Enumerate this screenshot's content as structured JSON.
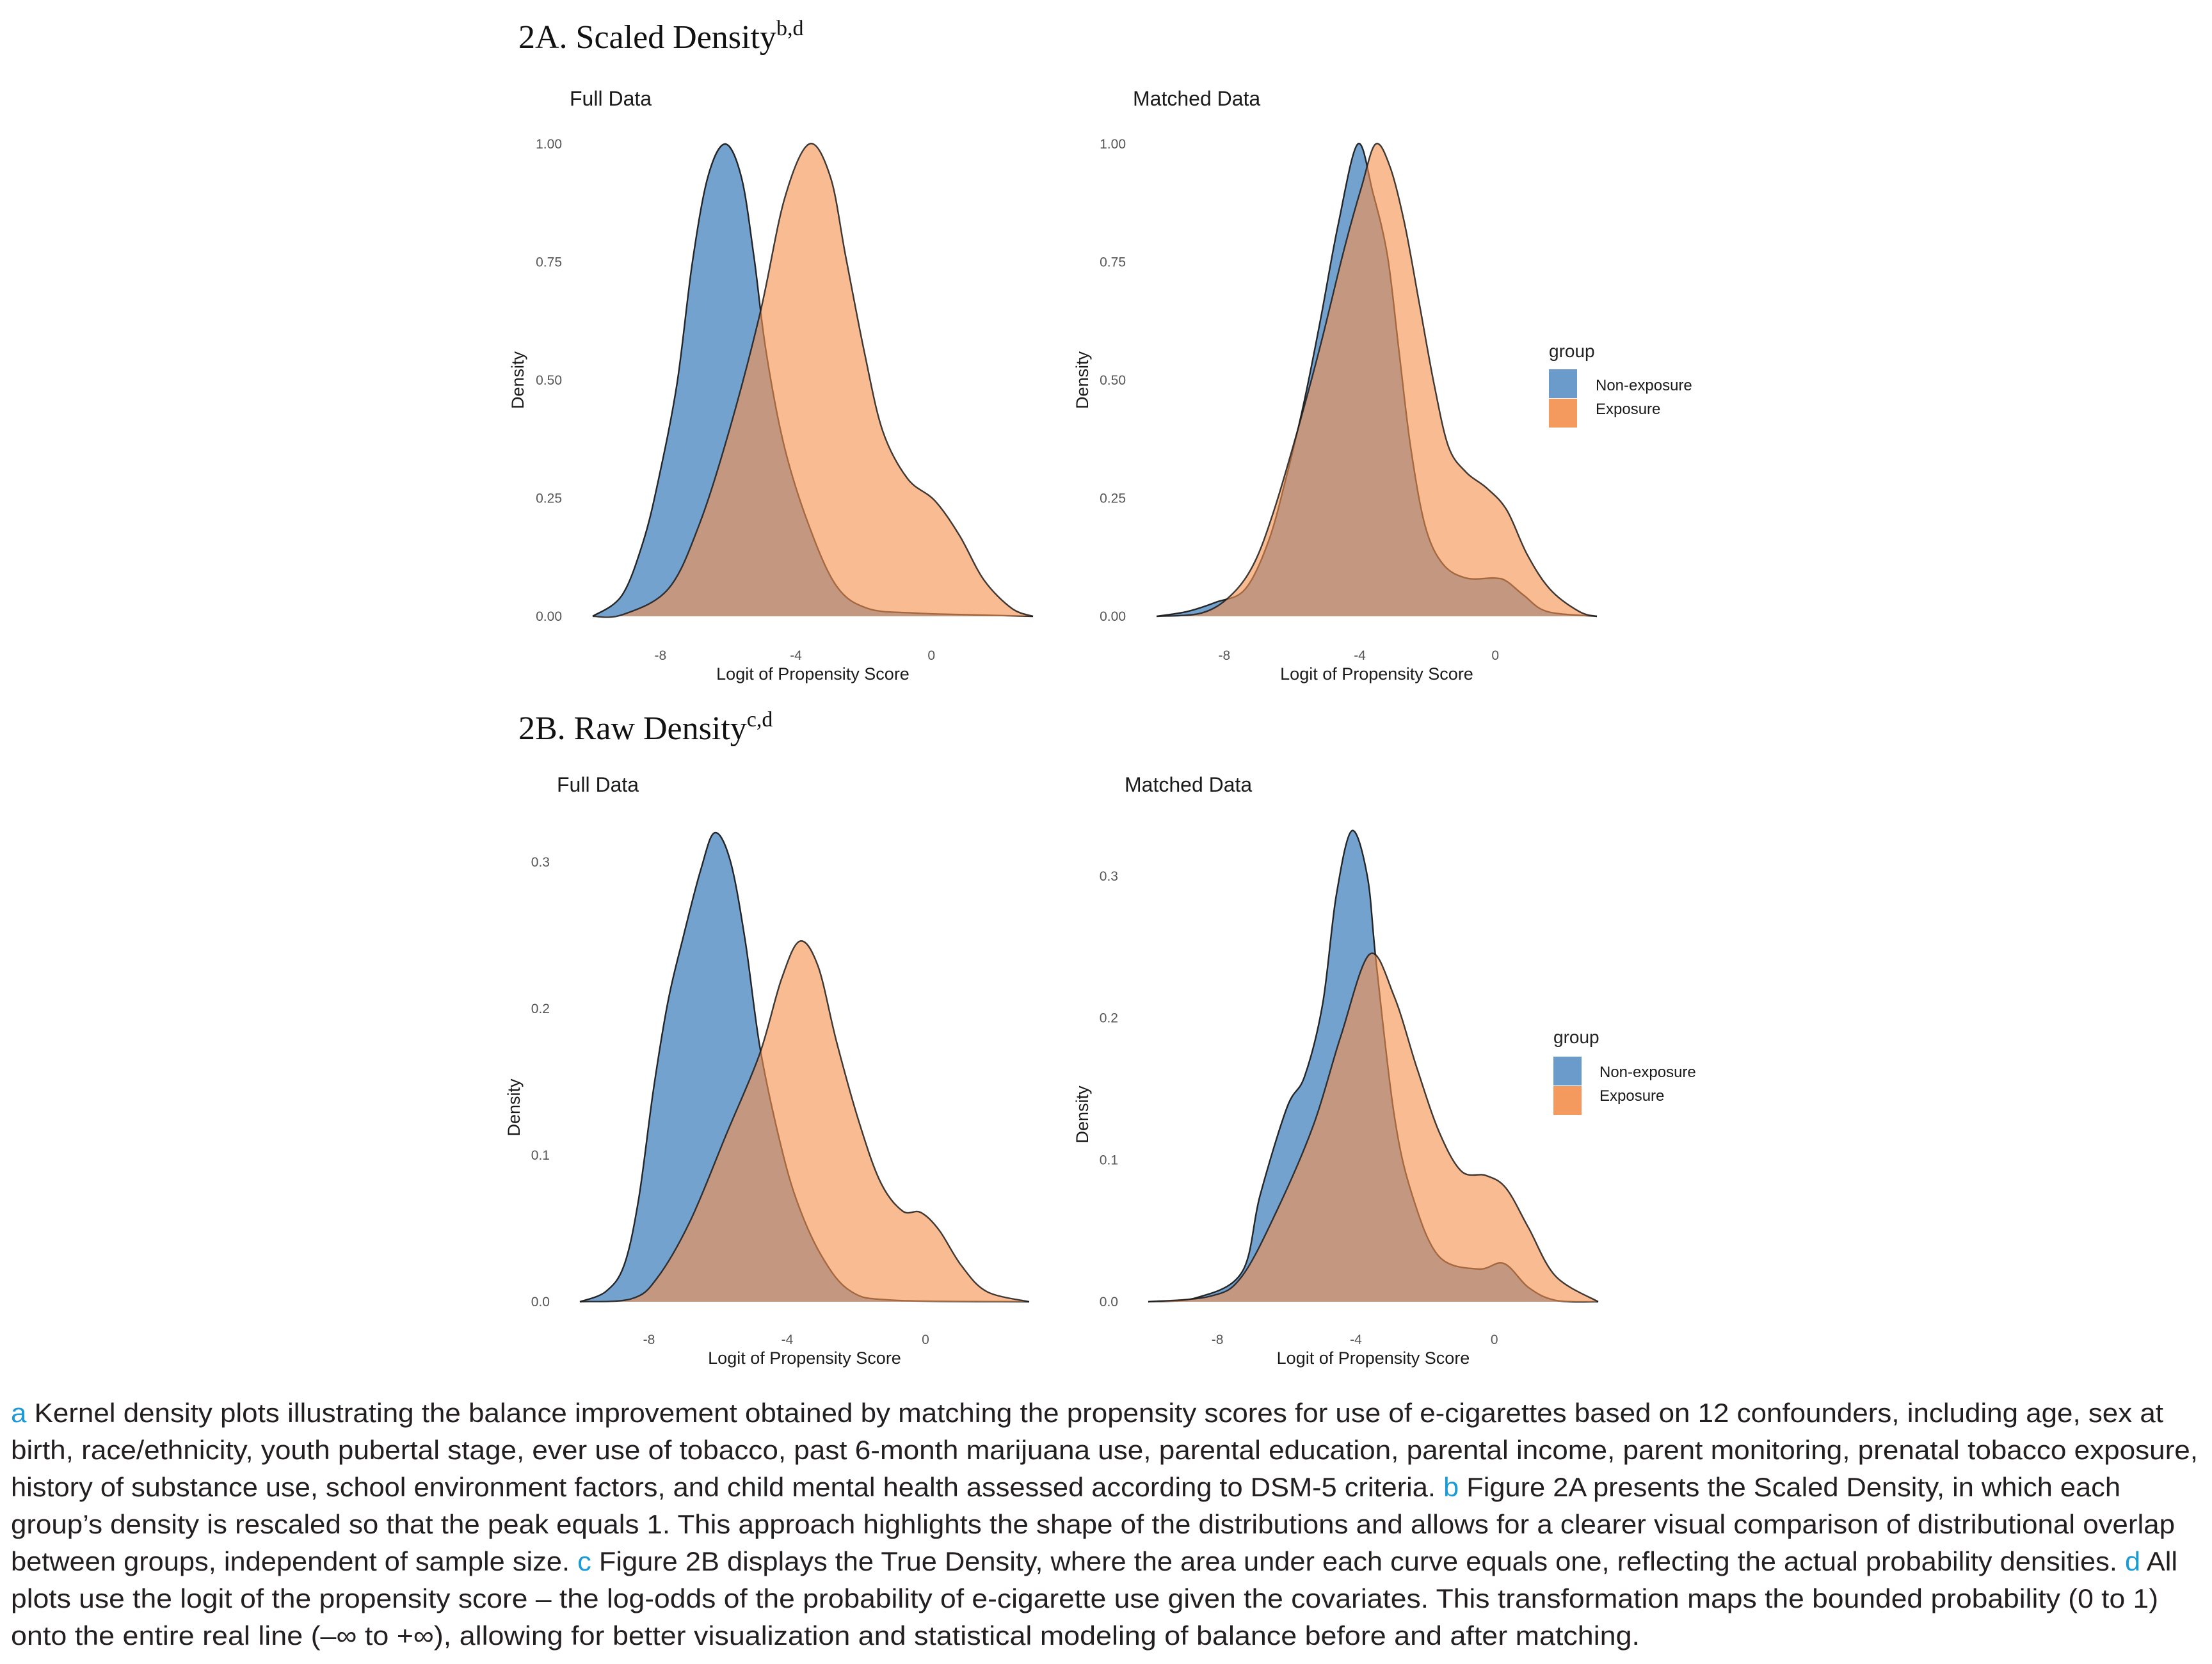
{
  "figure": {
    "colors": {
      "non_exposure": "#6a9bcb",
      "exposure": "#f59a5e",
      "overlap": "#c47d58",
      "outline": "#1b1b1b",
      "marker": "#1a9ad6"
    },
    "legend": {
      "title": "group",
      "items": [
        {
          "label": "Non-exposure",
          "color": "#6a9bcb"
        },
        {
          "label": "Exposure",
          "color": "#f59a5e"
        }
      ]
    },
    "sections": [
      {
        "id": "2A",
        "title": "2A. Scaled Density",
        "superscript": "b,d"
      },
      {
        "id": "2B",
        "title": "2B. Raw Density",
        "superscript": "c,d"
      }
    ]
  },
  "chart_data": [
    {
      "type": "area",
      "section": "2A. Scaled Density",
      "title": "Full Data",
      "xlabel": "Logit of Propensity Score",
      "ylabel": "Density",
      "xlim": [
        -10,
        3
      ],
      "ylim": [
        0,
        1.0
      ],
      "xticks": [
        -8,
        -4,
        0
      ],
      "xtick_labels": [
        "-8",
        "-4",
        "0"
      ],
      "yticks": [
        0,
        0.25,
        0.5,
        0.75,
        1.0
      ],
      "ytick_labels": [
        "0.00",
        "0.25",
        "0.50",
        "0.75",
        "1.00"
      ],
      "grid": false,
      "legend": "none",
      "series": [
        {
          "name": "Non-exposure",
          "x": [
            -10.0,
            -9.14,
            -8.51,
            -8.05,
            -7.51,
            -7.06,
            -6.6,
            -6.09,
            -5.61,
            -5.24,
            -4.88,
            -4.34,
            -3.61,
            -2.8,
            -1.89,
            -0.53,
            1.28,
            3.0
          ],
          "y": [
            0,
            0.044,
            0.158,
            0.292,
            0.493,
            0.748,
            0.93,
            1.0,
            0.93,
            0.762,
            0.56,
            0.359,
            0.191,
            0.064,
            0.017,
            0.007,
            0.003,
            0
          ]
        },
        {
          "name": "Exposure",
          "x": [
            -10.0,
            -9.14,
            -7.78,
            -6.87,
            -5.97,
            -5.06,
            -4.34,
            -3.61,
            -2.98,
            -2.53,
            -1.98,
            -1.44,
            -0.71,
            0.1,
            0.83,
            1.55,
            2.37,
            3.0
          ],
          "y": [
            0,
            0.003,
            0.057,
            0.191,
            0.393,
            0.641,
            0.883,
            1.0,
            0.93,
            0.762,
            0.56,
            0.393,
            0.292,
            0.245,
            0.171,
            0.077,
            0.017,
            0
          ]
        }
      ]
    },
    {
      "type": "area",
      "section": "2A. Scaled Density",
      "title": "Matched Data",
      "xlabel": "Logit of Propensity Score",
      "ylabel": "Density",
      "xlim": [
        -10,
        3
      ],
      "ylim": [
        0,
        1.0
      ],
      "xticks": [
        -8,
        -4,
        0
      ],
      "xtick_labels": [
        "-8",
        "-4",
        "0"
      ],
      "yticks": [
        0,
        0.25,
        0.5,
        0.75,
        1.0
      ],
      "ytick_labels": [
        "0.00",
        "0.25",
        "0.50",
        "0.75",
        "1.00"
      ],
      "grid": false,
      "legend": "right",
      "series": [
        {
          "name": "Non-exposure",
          "x": [
            -10.0,
            -9.1,
            -8.24,
            -7.39,
            -6.7,
            -6.18,
            -5.67,
            -5.16,
            -4.64,
            -4.06,
            -3.61,
            -3.18,
            -2.84,
            -2.5,
            -2.07,
            -1.55,
            -0.86,
            -0.01,
            0.34,
            0.85,
            1.54,
            3.0
          ],
          "y": [
            0,
            0.01,
            0.03,
            0.057,
            0.158,
            0.292,
            0.446,
            0.628,
            0.829,
            1.0,
            0.896,
            0.762,
            0.56,
            0.359,
            0.191,
            0.111,
            0.081,
            0.081,
            0.074,
            0.044,
            0.01,
            0
          ]
        },
        {
          "name": "Exposure",
          "x": [
            -10.0,
            -8.67,
            -7.81,
            -7.13,
            -6.53,
            -5.84,
            -5.16,
            -4.47,
            -3.95,
            -3.53,
            -3.1,
            -2.67,
            -2.24,
            -1.81,
            -1.38,
            -0.86,
            -0.26,
            0.34,
            0.94,
            1.62,
            2.48,
            3.0
          ],
          "y": [
            0,
            0.007,
            0.044,
            0.111,
            0.225,
            0.393,
            0.574,
            0.775,
            0.909,
            1.0,
            0.95,
            0.829,
            0.661,
            0.493,
            0.359,
            0.305,
            0.272,
            0.225,
            0.131,
            0.057,
            0.01,
            0
          ]
        }
      ]
    },
    {
      "type": "area",
      "section": "2B. Raw Density",
      "title": "Full Data",
      "xlabel": "Logit of Propensity Score",
      "ylabel": "Density",
      "xlim": [
        -10,
        3
      ],
      "ylim": [
        0,
        0.33
      ],
      "xticks": [
        -8,
        -4,
        0
      ],
      "xtick_labels": [
        "-8",
        "-4",
        "0"
      ],
      "yticks": [
        0,
        0.1,
        0.2,
        0.3
      ],
      "ytick_labels": [
        "0.0",
        "0.1",
        "0.2",
        "0.3"
      ],
      "grid": false,
      "legend": "none",
      "series": [
        {
          "name": "Non-exposure",
          "x": [
            -10.0,
            -9.25,
            -8.72,
            -8.3,
            -7.87,
            -7.45,
            -7.03,
            -6.5,
            -6.1,
            -5.65,
            -5.22,
            -4.8,
            -4.27,
            -3.74,
            -3.0,
            -2.15,
            -0.88,
            3.0
          ],
          "y": [
            0,
            0.007,
            0.025,
            0.07,
            0.145,
            0.205,
            0.247,
            0.295,
            0.32,
            0.301,
            0.247,
            0.175,
            0.115,
            0.07,
            0.031,
            0.007,
            0.001,
            0
          ]
        },
        {
          "name": "Exposure",
          "x": [
            -10.0,
            -8.51,
            -7.77,
            -6.81,
            -5.75,
            -4.8,
            -4.17,
            -3.64,
            -3.11,
            -2.58,
            -1.94,
            -1.31,
            -0.67,
            -0.14,
            0.39,
            1.03,
            1.77,
            3.0
          ],
          "y": [
            0,
            0.002,
            0.016,
            0.055,
            0.115,
            0.169,
            0.22,
            0.246,
            0.229,
            0.178,
            0.124,
            0.082,
            0.062,
            0.061,
            0.049,
            0.025,
            0.007,
            0
          ]
        }
      ]
    },
    {
      "type": "area",
      "section": "2B. Raw Density",
      "title": "Matched Data",
      "xlabel": "Logit of Propensity Score",
      "ylabel": "Density",
      "xlim": [
        -10,
        3
      ],
      "ylim": [
        0,
        0.34
      ],
      "xticks": [
        -8,
        -4,
        0
      ],
      "xtick_labels": [
        "-8",
        "-4",
        "0"
      ],
      "yticks": [
        0,
        0.1,
        0.2,
        0.3
      ],
      "ytick_labels": [
        "0.0",
        "0.1",
        "0.2",
        "0.3"
      ],
      "grid": false,
      "legend": "right",
      "series": [
        {
          "name": "Non-exposure",
          "x": [
            -10.0,
            -8.58,
            -7.29,
            -6.77,
            -5.99,
            -5.48,
            -4.96,
            -4.57,
            -4.12,
            -3.67,
            -3.41,
            -2.89,
            -2.37,
            -1.6,
            -0.43,
            0.28,
            0.99,
            1.77,
            3.0
          ],
          "y": [
            0,
            0.003,
            0.021,
            0.075,
            0.137,
            0.159,
            0.21,
            0.286,
            0.332,
            0.3,
            0.238,
            0.131,
            0.075,
            0.032,
            0.023,
            0.027,
            0.01,
            0.001,
            0
          ]
        },
        {
          "name": "Exposure",
          "x": [
            -10.0,
            -8.19,
            -7.29,
            -6.25,
            -5.22,
            -4.44,
            -3.6,
            -2.89,
            -2.24,
            -1.6,
            -0.95,
            -0.24,
            0.34,
            0.99,
            1.77,
            3.0
          ],
          "y": [
            0,
            0.004,
            0.018,
            0.066,
            0.125,
            0.187,
            0.245,
            0.215,
            0.165,
            0.12,
            0.092,
            0.089,
            0.08,
            0.052,
            0.018,
            0
          ]
        }
      ]
    }
  ],
  "caption": {
    "lines": [
      [
        {
          "t": "a",
          "marker": true
        },
        {
          "t": " Kernel density plots illustrating the balance improvement obtained by matching the propensity scores for use of e-cigarettes based on 12 confounders, including age, sex at"
        }
      ],
      [
        {
          "t": "birth, race/ethnicity, youth pubertal stage, ever use of tobacco, past 6-month marijuana use, parental education, parental income, parent monitoring, prenatal tobacco exposure,"
        }
      ],
      [
        {
          "t": "history of substance use, school environment factors, and child mental health assessed according to DSM-5 criteria. "
        },
        {
          "t": "b",
          "marker": true
        },
        {
          "t": " Figure 2A presents the Scaled Density, in which each"
        }
      ],
      [
        {
          "t": "group’s density is rescaled so that the peak equals 1. This approach highlights the shape of the distributions and allows for a clearer visual comparison of distributional overlap"
        }
      ],
      [
        {
          "t": "between groups, independent of sample size. "
        },
        {
          "t": "c",
          "marker": true
        },
        {
          "t": " Figure 2B displays the True Density, where the area under each curve equals one, reflecting the actual probability densities. "
        },
        {
          "t": "d",
          "marker": true
        },
        {
          "t": " All"
        }
      ],
      [
        {
          "t": "plots use the logit of the propensity score – the log-odds of the probability of e-cigarette use given the covariates. This transformation maps the bounded probability (0 to 1)"
        }
      ],
      [
        {
          "t": "onto the entire real line (–∞ to +∞), allowing for better visualization and statistical modeling of balance before and after matching."
        }
      ]
    ]
  }
}
